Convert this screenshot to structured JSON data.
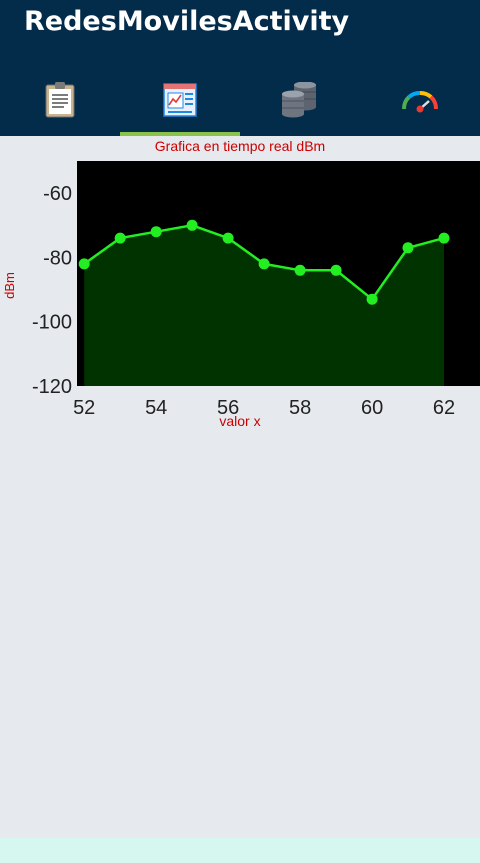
{
  "app": {
    "title": "RedesMovilesActivity"
  },
  "tabs": [
    {
      "icon": "clipboard-icon",
      "active": false
    },
    {
      "icon": "chart-report-icon",
      "active": true
    },
    {
      "icon": "database-icon",
      "active": false
    },
    {
      "icon": "speedometer-icon",
      "active": false
    }
  ],
  "colors": {
    "appbar": "#032b4a",
    "tab_indicator": "#8bc34a",
    "plot_background": "#000000",
    "line": "#22ee22",
    "fill": "#003300",
    "chart_text": "#cc0000"
  },
  "chart_data": {
    "type": "area",
    "title": "Grafica en tiempo real dBm",
    "xlabel": "valor x",
    "ylabel": "dBm",
    "x": [
      52,
      53,
      54,
      55,
      56,
      57,
      58,
      59,
      60,
      61,
      62
    ],
    "y": [
      -82,
      -74,
      -72,
      -70,
      -74,
      -82,
      -84,
      -84,
      -93,
      -77,
      -74
    ],
    "xlim": [
      51.8,
      63
    ],
    "ylim": [
      -120,
      -50
    ],
    "xticks": [
      52,
      54,
      56,
      58,
      60,
      62
    ],
    "yticks": [
      -60,
      -80,
      -100,
      -120
    ],
    "grid": false,
    "legend": "none"
  }
}
